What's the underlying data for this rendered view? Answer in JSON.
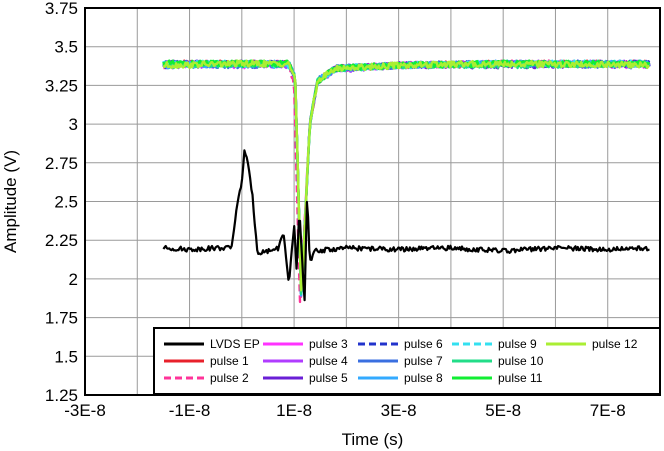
{
  "chart_data": {
    "type": "line",
    "title": "",
    "xlabel": "Time (s)",
    "ylabel": "Amplitude (V)",
    "xlim": [
      -3e-08,
      8e-08
    ],
    "ylim": [
      1.25,
      3.75
    ],
    "grid": true,
    "legend_position": "bottom-right",
    "x_ticks": [
      {
        "value": -3e-08,
        "label": "-3E-8"
      },
      {
        "value": -1e-08,
        "label": "-1E-8"
      },
      {
        "value": 1e-08,
        "label": "1E-8"
      },
      {
        "value": 3e-08,
        "label": "3E-8"
      },
      {
        "value": 5e-08,
        "label": "5E-8"
      },
      {
        "value": 7e-08,
        "label": "7E-8"
      }
    ],
    "y_ticks": [
      {
        "value": 1.25,
        "label": "1.25"
      },
      {
        "value": 1.5,
        "label": "1.5"
      },
      {
        "value": 1.75,
        "label": "1.75"
      },
      {
        "value": 2,
        "label": "2"
      },
      {
        "value": 2.25,
        "label": "2.25"
      },
      {
        "value": 2.5,
        "label": "2.5"
      },
      {
        "value": 2.75,
        "label": "2.75"
      },
      {
        "value": 3,
        "label": "3"
      },
      {
        "value": 3.25,
        "label": "3.25"
      },
      {
        "value": 3.5,
        "label": "3.5"
      },
      {
        "value": 3.75,
        "label": "3.75"
      }
    ],
    "series": [
      {
        "name": "LVDS EP",
        "color": "#000000",
        "dash": "solid",
        "x": [
          -1.5e-08,
          -1e-08,
          -5e-09,
          -2e-09,
          -1e-09,
          0,
          5e-10,
          1e-09,
          2e-09,
          3e-09,
          5e-09,
          7e-09,
          8e-09,
          9e-09,
          1e-08,
          1.05e-08,
          1.1e-08,
          1.2e-08,
          1.25e-08,
          1.3e-08,
          1.4e-08,
          2e-08,
          3e-08,
          4e-08,
          5e-08,
          6e-08,
          7e-08,
          7.8e-08
        ],
        "y": [
          2.2,
          2.19,
          2.2,
          2.2,
          2.45,
          2.63,
          2.83,
          2.77,
          2.55,
          2.17,
          2.18,
          2.2,
          2.3,
          1.95,
          2.35,
          2.05,
          2.45,
          1.85,
          2.55,
          2.1,
          2.18,
          2.2,
          2.19,
          2.2,
          2.18,
          2.2,
          2.19,
          2.2
        ]
      },
      {
        "name": "pulse 1",
        "color": "#e8212b",
        "dash": "solid",
        "x": [
          -1.5e-08,
          0,
          9e-09,
          1.02e-08,
          1.08e-08,
          1.14e-08,
          1.2e-08,
          1.3e-08,
          1.45e-08,
          1.8e-08,
          3e-08,
          5e-08,
          7.8e-08
        ],
        "y": [
          3.39,
          3.39,
          3.39,
          3.3,
          2.6,
          1.85,
          2.3,
          3.0,
          3.28,
          3.36,
          3.38,
          3.39,
          3.39
        ]
      },
      {
        "name": "pulse 2",
        "color": "#ff3399",
        "dash": "dashed",
        "x": [
          -1.5e-08,
          0,
          9e-09,
          1e-08,
          1.06e-08,
          1.12e-08,
          1.2e-08,
          1.3e-08,
          1.45e-08,
          1.8e-08,
          3e-08,
          5e-08,
          7.8e-08
        ],
        "y": [
          3.38,
          3.39,
          3.39,
          3.25,
          2.5,
          1.77,
          2.35,
          3.02,
          3.28,
          3.36,
          3.38,
          3.39,
          3.39
        ]
      },
      {
        "name": "pulse 3",
        "color": "#ff33ff",
        "dash": "solid",
        "x": [
          -1.5e-08,
          0,
          9e-09,
          1.02e-08,
          1.08e-08,
          1.14e-08,
          1.2e-08,
          1.3e-08,
          1.45e-08,
          1.8e-08,
          3e-08,
          5e-08,
          7.8e-08
        ],
        "y": [
          3.39,
          3.38,
          3.39,
          3.3,
          2.6,
          1.84,
          2.3,
          3.0,
          3.28,
          3.36,
          3.38,
          3.39,
          3.38
        ]
      },
      {
        "name": "pulse 4",
        "color": "#b03cff",
        "dash": "solid",
        "x": [
          -1.5e-08,
          0,
          9e-09,
          1.02e-08,
          1.08e-08,
          1.14e-08,
          1.2e-08,
          1.3e-08,
          1.45e-08,
          1.8e-08,
          3e-08,
          5e-08,
          7.8e-08
        ],
        "y": [
          3.38,
          3.39,
          3.38,
          3.3,
          2.6,
          1.85,
          2.3,
          3.0,
          3.28,
          3.35,
          3.38,
          3.39,
          3.39
        ]
      },
      {
        "name": "pulse 5",
        "color": "#6a1fd6",
        "dash": "solid",
        "x": [
          -1.5e-08,
          0,
          9e-09,
          1.02e-08,
          1.08e-08,
          1.14e-08,
          1.2e-08,
          1.3e-08,
          1.45e-08,
          1.8e-08,
          3e-08,
          5e-08,
          7.8e-08
        ],
        "y": [
          3.39,
          3.39,
          3.39,
          3.3,
          2.6,
          1.85,
          2.3,
          3.0,
          3.28,
          3.36,
          3.38,
          3.38,
          3.39
        ]
      },
      {
        "name": "pulse 6",
        "color": "#2233cc",
        "dash": "dashed",
        "x": [
          -1.5e-08,
          0,
          9e-09,
          1.02e-08,
          1.08e-08,
          1.14e-08,
          1.2e-08,
          1.3e-08,
          1.45e-08,
          1.8e-08,
          3e-08,
          5e-08,
          7.8e-08
        ],
        "y": [
          3.38,
          3.39,
          3.39,
          3.3,
          2.6,
          1.84,
          2.3,
          3.0,
          3.28,
          3.36,
          3.38,
          3.39,
          3.39
        ]
      },
      {
        "name": "pulse 7",
        "color": "#3a6fe0",
        "dash": "solid",
        "x": [
          -1.5e-08,
          0,
          9e-09,
          1.02e-08,
          1.08e-08,
          1.14e-08,
          1.2e-08,
          1.3e-08,
          1.45e-08,
          1.8e-08,
          3e-08,
          5e-08,
          7.8e-08
        ],
        "y": [
          3.39,
          3.38,
          3.39,
          3.3,
          2.6,
          1.85,
          2.3,
          3.0,
          3.28,
          3.36,
          3.38,
          3.39,
          3.38
        ]
      },
      {
        "name": "pulse 8",
        "color": "#33aaff",
        "dash": "solid",
        "x": [
          -1.5e-08,
          0,
          9e-09,
          1.02e-08,
          1.08e-08,
          1.14e-08,
          1.2e-08,
          1.3e-08,
          1.45e-08,
          1.8e-08,
          3e-08,
          5e-08,
          7.8e-08
        ],
        "y": [
          3.38,
          3.39,
          3.39,
          3.3,
          2.6,
          1.85,
          2.3,
          3.0,
          3.28,
          3.36,
          3.38,
          3.39,
          3.39
        ]
      },
      {
        "name": "pulse 9",
        "color": "#33e0f0",
        "dash": "dashed",
        "x": [
          -1.5e-08,
          0,
          9e-09,
          1.02e-08,
          1.08e-08,
          1.14e-08,
          1.2e-08,
          1.3e-08,
          1.45e-08,
          1.8e-08,
          3e-08,
          5e-08,
          7.8e-08
        ],
        "y": [
          3.39,
          3.39,
          3.38,
          3.3,
          2.6,
          1.86,
          2.3,
          3.0,
          3.28,
          3.36,
          3.38,
          3.39,
          3.39
        ]
      },
      {
        "name": "pulse 10",
        "color": "#22dd88",
        "dash": "solid",
        "x": [
          -1.5e-08,
          0,
          9e-09,
          1.02e-08,
          1.08e-08,
          1.14e-08,
          1.2e-08,
          1.3e-08,
          1.45e-08,
          1.8e-08,
          3e-08,
          5e-08,
          7.8e-08
        ],
        "y": [
          3.38,
          3.39,
          3.39,
          3.3,
          2.6,
          1.85,
          2.3,
          3.0,
          3.28,
          3.36,
          3.38,
          3.38,
          3.39
        ]
      },
      {
        "name": "pulse 11",
        "color": "#11ee33",
        "dash": "solid",
        "x": [
          -1.5e-08,
          0,
          9e-09,
          1.02e-08,
          1.08e-08,
          1.14e-08,
          1.2e-08,
          1.3e-08,
          1.45e-08,
          1.8e-08,
          3e-08,
          5e-08,
          7.8e-08
        ],
        "y": [
          3.39,
          3.39,
          3.39,
          3.3,
          2.6,
          1.86,
          2.3,
          3.0,
          3.28,
          3.36,
          3.38,
          3.39,
          3.39
        ]
      },
      {
        "name": "pulse 12",
        "color": "#aaee33",
        "dash": "solid",
        "x": [
          -1.5e-08,
          0,
          9e-09,
          1.02e-08,
          1.08e-08,
          1.14e-08,
          1.2e-08,
          1.3e-08,
          1.45e-08,
          1.8e-08,
          3e-08,
          5e-08,
          7.8e-08
        ],
        "y": [
          3.38,
          3.39,
          3.39,
          3.3,
          2.6,
          1.86,
          2.3,
          3.0,
          3.28,
          3.36,
          3.38,
          3.39,
          3.38
        ]
      }
    ]
  }
}
